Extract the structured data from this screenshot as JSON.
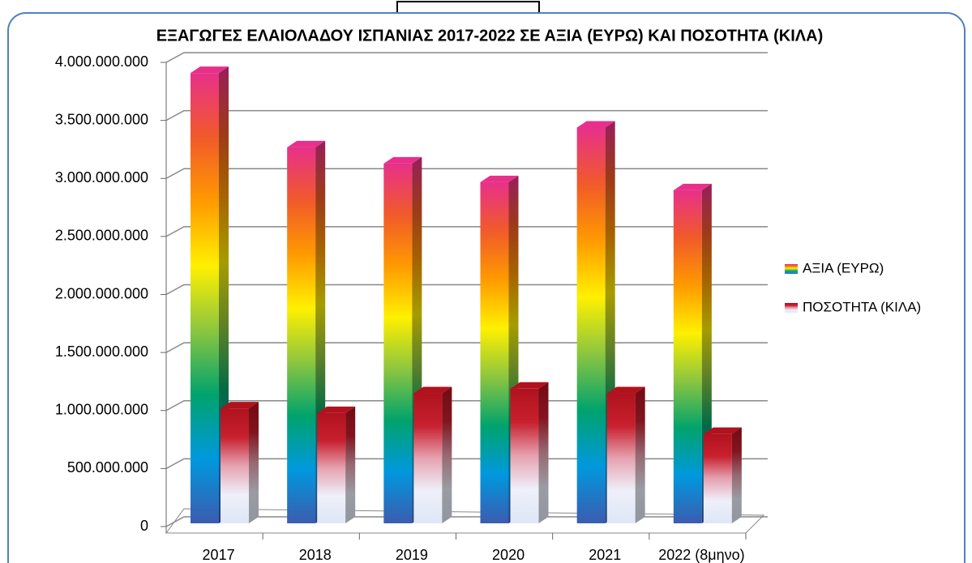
{
  "chart_data": {
    "type": "bar3d",
    "title": "ΕΞΑΓΩΓΕΣ ΕΛΑΙΟΛΑΔΟΥ ΙΣΠΑΝΙΑΣ 2017-2022 ΣΕ ΑΞΙΑ (ΕΥΡΩ) ΚΑΙ ΠΟΣΟΤΗΤΑ (ΚΙΛΑ)",
    "categories": [
      "2017",
      "2018",
      "2019",
      "2020",
      "2021",
      "2022 (8μηνο)"
    ],
    "series": [
      {
        "name": "ΑΞΙΑ (ΕΥΡΩ)",
        "colors": [
          "#3b5cb0",
          "#0098de",
          "#00a36c",
          "#8cc63f",
          "#fff000",
          "#ff9a00",
          "#f15a29",
          "#e8308a"
        ],
        "values": [
          3950000000,
          3310000000,
          3170000000,
          3010000000,
          3480000000,
          2940000000
        ]
      },
      {
        "name": "ΠΟΣΟΤΗΤΑ (ΚΙΛΑ)",
        "colors": [
          "#dfe6f5",
          "#eef0fa",
          "#e6a2b0",
          "#c8202e",
          "#b0121e"
        ],
        "values": [
          1060000000,
          1020000000,
          1190000000,
          1230000000,
          1190000000,
          840000000
        ]
      }
    ],
    "ylim": [
      0,
      4000000000
    ],
    "yticks": [
      0,
      {
        "value": 500000000,
        "label": "500.000.000"
      },
      {
        "value": 1000000000,
        "label": "1.000.000.000"
      },
      {
        "value": 1500000000,
        "label": "1.500.000.000"
      },
      {
        "value": 2000000000,
        "label": "2.000.000.000"
      },
      {
        "value": 2500000000,
        "label": "2.500.000.000"
      },
      {
        "value": 3000000000,
        "label": "3.000.000.000"
      },
      {
        "value": 3500000000,
        "label": "3.500.000.000"
      },
      {
        "value": 4000000000,
        "label": "4.000.000.000"
      }
    ],
    "grid": true,
    "legend": "right"
  }
}
